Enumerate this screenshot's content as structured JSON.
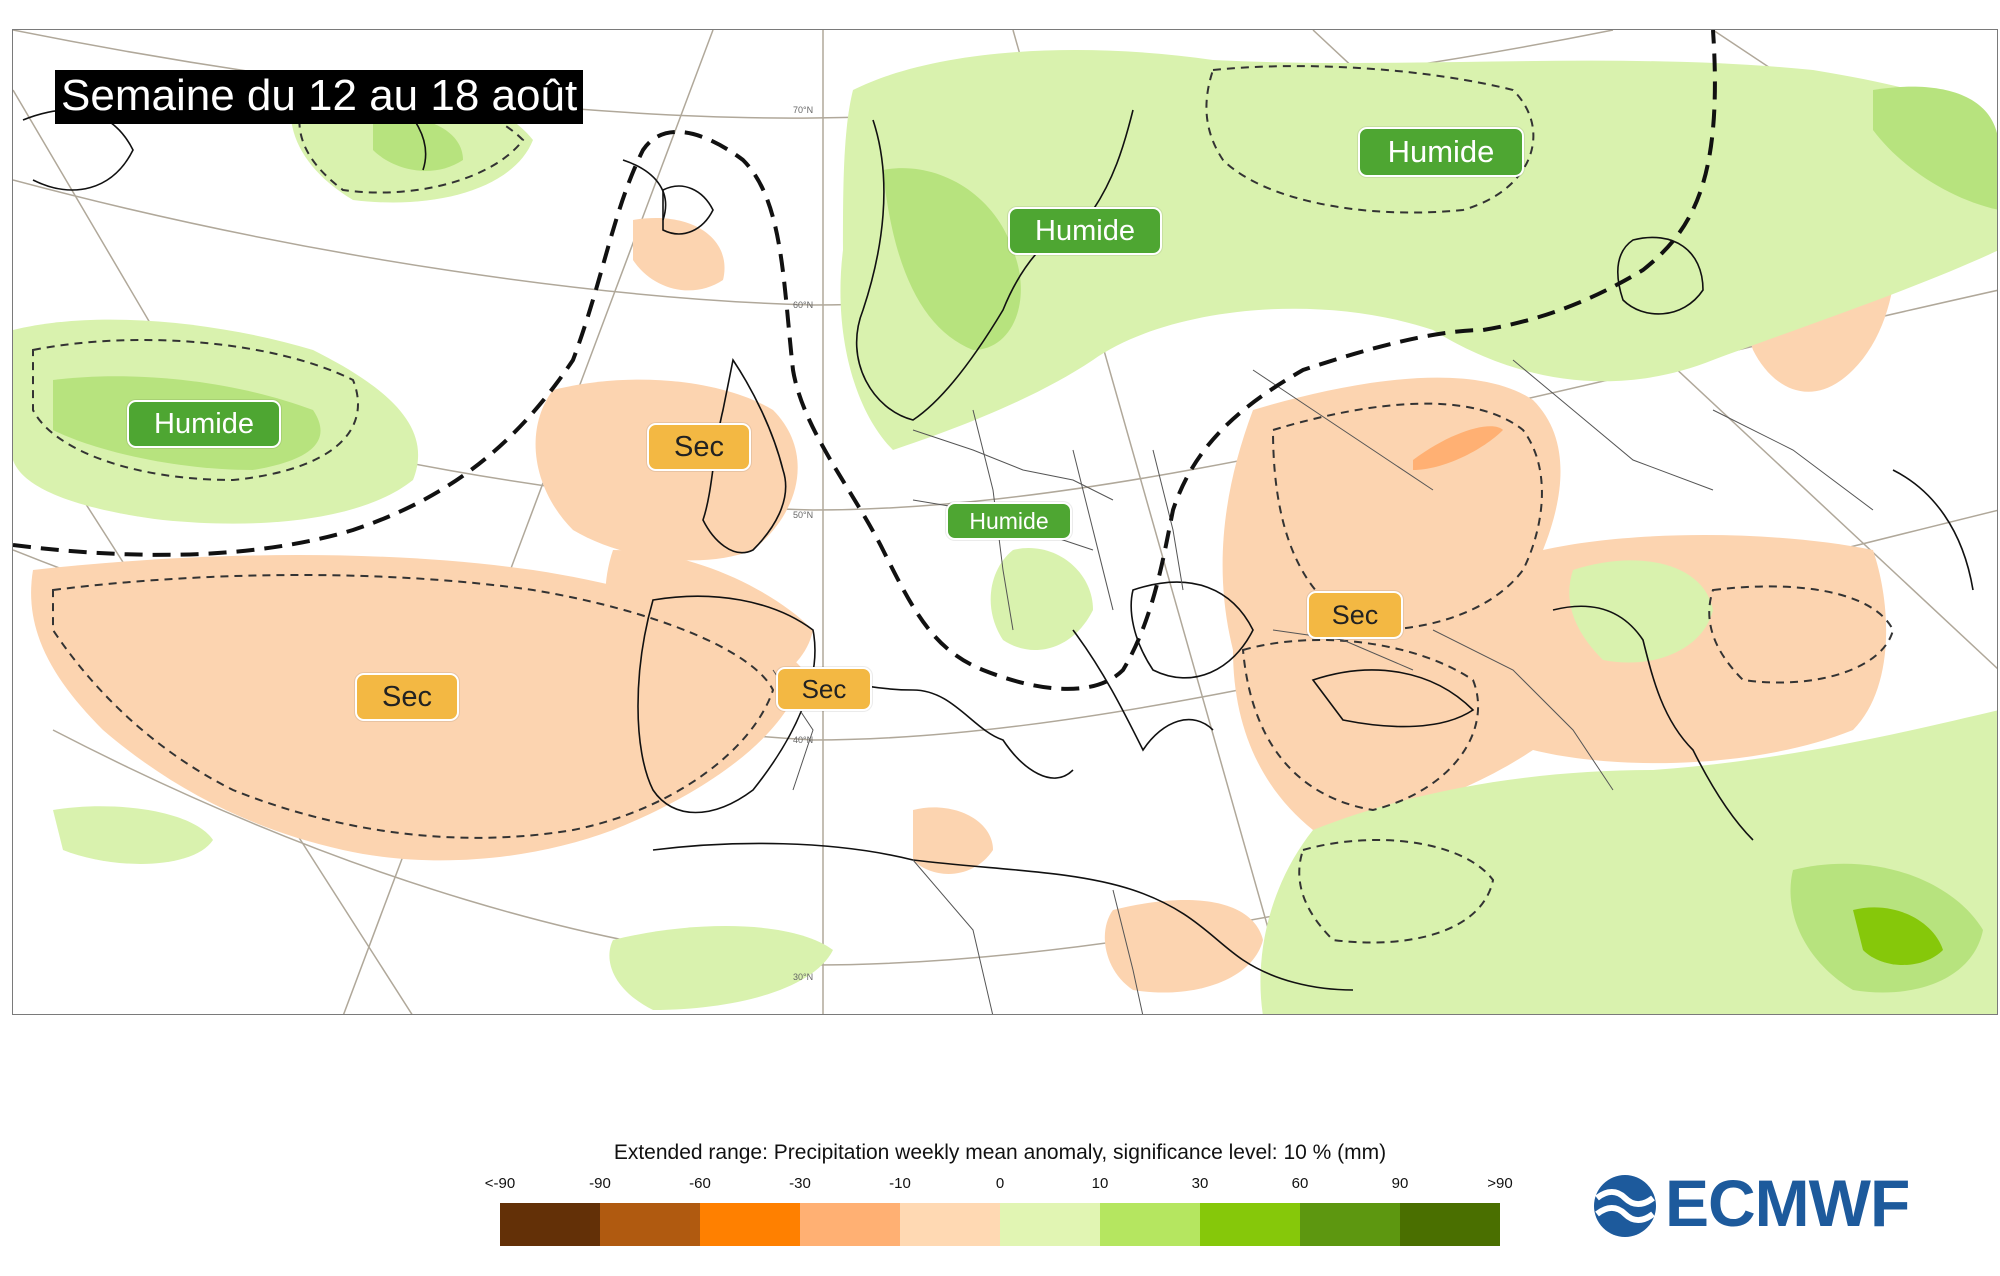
{
  "map": {
    "title": "Semaine du 12 au 18 août",
    "labels": {
      "wet_atlantic": "Humide",
      "wet_scandinavia": "Humide",
      "wet_russia": "Humide",
      "wet_central": "Humide",
      "dry_uk": "Sec",
      "dry_atlantic": "Sec",
      "dry_iberia": "Sec",
      "dry_balkans": "Sec"
    },
    "latitude_labels": {
      "lat70": "70°N",
      "lat60": "60°N",
      "lat50": "50°N",
      "lat40": "40°N",
      "lat30": "30°N"
    }
  },
  "legend": {
    "title": "Extended range: Precipitation weekly mean anomaly, significance level: 10 % (mm)",
    "ticks": [
      "<-90",
      "-90",
      "-60",
      "-30",
      "-10",
      "0",
      "10",
      "30",
      "60",
      "90",
      ">90"
    ],
    "colors": [
      "#633007",
      "#b05a10",
      "#ff8000",
      "#ffb073",
      "#ffd9b3",
      "#e1f5b3",
      "#b5e660",
      "#86c80a",
      "#5d9710",
      "#4a6f00"
    ]
  },
  "logo": {
    "text": "ECMWF",
    "color": "#1d5a9c"
  },
  "palette": {
    "wet_label": "#4ea632",
    "dry_label": "#f3b843",
    "dry_light": "#fcd4b0",
    "wet_light": "#d9f2ae",
    "wet_mid": "#b7e37e",
    "wet_dark": "#86c80a"
  }
}
